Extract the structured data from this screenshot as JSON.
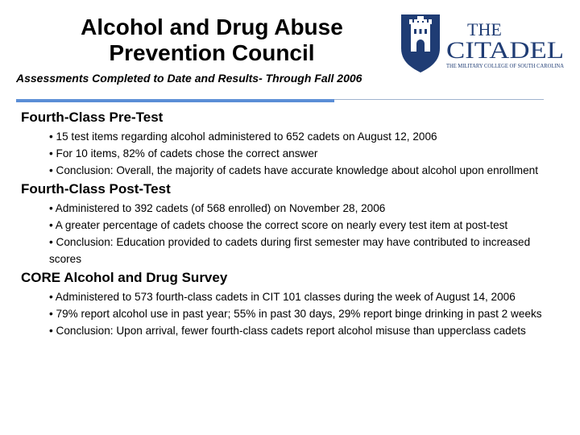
{
  "header": {
    "title_line1": "Alcohol and Drug Abuse",
    "title_line2": "Prevention Council",
    "subtitle": "Assessments Completed to Date and Results- Through Fall 2006"
  },
  "logo": {
    "word_the": "THE",
    "word_citadel": "CITADEL",
    "tagline": "THE MILITARY COLLEGE OF SOUTH CAROLINA",
    "color": "#1f3c74"
  },
  "colors": {
    "accent_rule": "#5b8ed6",
    "thin_rule": "#9fb3cf"
  },
  "sections": [
    {
      "heading": "Fourth-Class Pre-Test",
      "bullets": [
        "• 15 test items regarding alcohol administered to 652 cadets on August 12, 2006",
        "• For 10 items, 82% of cadets chose the correct answer",
        "• Conclusion: Overall, the majority of cadets have accurate knowledge about alcohol upon enrollment"
      ]
    },
    {
      "heading": "Fourth-Class Post-Test",
      "bullets": [
        "• Administered to 392 cadets (of 568 enrolled) on November 28, 2006",
        "• A greater percentage of cadets choose the correct score on nearly every test item at post-test",
        "• Conclusion: Education provided to cadets during first semester may have contributed to increased scores"
      ]
    },
    {
      "heading": "CORE Alcohol and Drug Survey",
      "bullets": [
        "• Administered to 573 fourth-class cadets in CIT 101 classes during the week of August 14, 2006",
        "• 79% report alcohol use in past year; 55% in past 30 days, 29% report binge drinking in past 2 weeks",
        "• Conclusion: Upon arrival, fewer fourth-class cadets report alcohol misuse than upperclass cadets"
      ]
    }
  ]
}
